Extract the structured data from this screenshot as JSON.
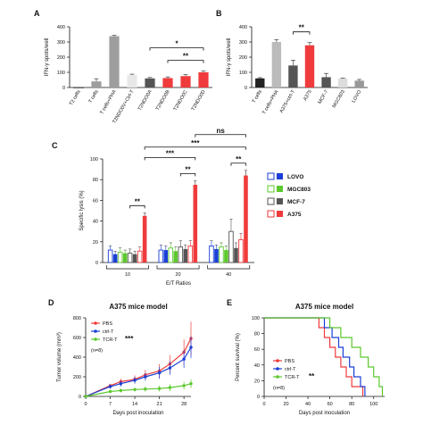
{
  "chart_data": [
    {
      "id": "A",
      "type": "bar",
      "panel_label": "A",
      "ylabel": "IFN-γ spots/well",
      "ylim": [
        0,
        400
      ],
      "yticks": [
        0,
        100,
        200,
        300,
        400
      ],
      "categories": [
        "T2 cells",
        "T cells",
        "T cells+PHA",
        "T2NDO0V+Ctrl-T",
        "T2NDO0A",
        "T2NDO0B",
        "T2NDO0C",
        "T2NDO0D"
      ],
      "values": [
        0,
        40,
        338,
        82,
        60,
        62,
        75,
        100
      ],
      "errors": [
        0,
        18,
        5,
        6,
        6,
        8,
        10,
        8
      ],
      "colors": [
        "#ffffff",
        "#9e9e9e",
        "#9e9e9e",
        "#e8e8e8",
        "#555555",
        "#ef3b3b",
        "#ef3b3b",
        "#ef3b3b"
      ],
      "significance": [
        {
          "from": 4,
          "to": 7,
          "label": "*"
        },
        {
          "from": 5,
          "to": 7,
          "label": "**"
        }
      ]
    },
    {
      "id": "B",
      "type": "bar",
      "panel_label": "B",
      "ylabel": "IFN-γ spots/well",
      "ylim": [
        0,
        400
      ],
      "yticks": [
        0,
        100,
        200,
        300,
        400
      ],
      "categories": [
        "T cells",
        "T cells+PHA",
        "A375+ctrl-T",
        "A375",
        "MCF-7",
        "MGC803",
        "LOVO"
      ],
      "values": [
        60,
        300,
        145,
        278,
        68,
        60,
        45
      ],
      "errors": [
        5,
        15,
        35,
        18,
        25,
        3,
        8
      ],
      "colors": [
        "#222222",
        "#bbbbbb",
        "#555555",
        "#ef3b3b",
        "#555555",
        "#dddddd",
        "#999999"
      ],
      "significance": [
        {
          "from": 2,
          "to": 3,
          "label": "**"
        }
      ]
    },
    {
      "id": "C",
      "type": "bar",
      "panel_label": "C",
      "ylabel": "Specific lysis (%)",
      "xlabel": "E/T Ratios",
      "ylim": [
        0,
        100
      ],
      "yticks": [
        0,
        20,
        40,
        60,
        80,
        100
      ],
      "categories": [
        "10",
        "20",
        "40"
      ],
      "series": [
        {
          "name": "LOVO",
          "values": [
            12,
            12,
            16
          ],
          "errors": [
            4,
            5,
            5
          ],
          "color": "#1a3fd6",
          "hollow": true
        },
        {
          "name": "",
          "values": [
            8,
            12,
            13
          ],
          "errors": [
            3,
            4,
            4
          ],
          "color": "#1a3fd6",
          "hollow": false
        },
        {
          "name": "MGC803",
          "values": [
            10,
            14,
            15
          ],
          "errors": [
            4,
            5,
            4
          ],
          "color": "#5cc82d",
          "hollow": true
        },
        {
          "name": "",
          "values": [
            9,
            11,
            12
          ],
          "errors": [
            3,
            4,
            4
          ],
          "color": "#5cc82d",
          "hollow": false
        },
        {
          "name": "MCF-7",
          "values": [
            9,
            15,
            30
          ],
          "errors": [
            4,
            6,
            12
          ],
          "color": "#555555",
          "hollow": true
        },
        {
          "name": "",
          "values": [
            8,
            13,
            14
          ],
          "errors": [
            3,
            4,
            5
          ],
          "color": "#555555",
          "hollow": false
        },
        {
          "name": "A375",
          "values": [
            11,
            16,
            22
          ],
          "errors": [
            4,
            5,
            6
          ],
          "color": "#ef3b3b",
          "hollow": true
        },
        {
          "name": "",
          "values": [
            45,
            75,
            84
          ],
          "errors": [
            3,
            4,
            5
          ],
          "color": "#ef3b3b",
          "hollow": false
        }
      ],
      "significance": [
        {
          "label": "**"
        },
        {
          "label": "**"
        },
        {
          "label": "**"
        },
        {
          "label": "***"
        },
        {
          "label": "***"
        },
        {
          "label": "ns"
        }
      ]
    },
    {
      "id": "D",
      "type": "line",
      "panel_label": "D",
      "title": "A375 mice model",
      "xlabel": "Days post inoculation",
      "ylabel": "Tumor volume (mm³)",
      "xlim": [
        0,
        30
      ],
      "xticks": [
        0,
        7,
        14,
        21,
        28
      ],
      "ylim": [
        0,
        800
      ],
      "yticks": [
        0,
        200,
        400,
        600,
        800
      ],
      "series": [
        {
          "name": "PBS",
          "color": "#ef3b3b",
          "x": [
            0,
            7,
            10,
            14,
            17,
            21,
            24,
            28,
            30
          ],
          "y": [
            0,
            110,
            150,
            175,
            220,
            260,
            330,
            450,
            590
          ],
          "err": [
            0,
            20,
            30,
            40,
            50,
            70,
            90,
            130,
            170
          ]
        },
        {
          "name": "ctrl-T",
          "color": "#1a3fd6",
          "x": [
            0,
            7,
            10,
            14,
            17,
            21,
            24,
            28,
            30
          ],
          "y": [
            0,
            100,
            130,
            165,
            200,
            240,
            290,
            380,
            500
          ],
          "err": [
            0,
            20,
            30,
            35,
            40,
            60,
            70,
            90,
            110
          ]
        },
        {
          "name": "TCR-T",
          "color": "#5cc82d",
          "x": [
            0,
            7,
            10,
            14,
            17,
            21,
            24,
            28,
            30
          ],
          "y": [
            0,
            50,
            60,
            70,
            75,
            80,
            90,
            110,
            130
          ],
          "err": [
            0,
            15,
            20,
            20,
            25,
            30,
            35,
            40,
            45
          ]
        }
      ],
      "annotation": "(n=8)",
      "significance": "***"
    },
    {
      "id": "E",
      "type": "line",
      "panel_label": "E",
      "title": "A375 mice model",
      "xlabel": "Days post inoculation",
      "ylabel": "Percent survival (%)",
      "xlim": [
        0,
        110
      ],
      "xticks": [
        0,
        20,
        40,
        60,
        80,
        100
      ],
      "ylim": [
        0,
        100
      ],
      "yticks": [
        0,
        20,
        40,
        60,
        80,
        100
      ],
      "series": [
        {
          "name": "PBS",
          "color": "#ef3b3b",
          "x": [
            0,
            50,
            50,
            55,
            55,
            60,
            60,
            65,
            65,
            70,
            70,
            75,
            75,
            80,
            80,
            85,
            85,
            90,
            90
          ],
          "y": [
            100,
            100,
            87.5,
            87.5,
            75,
            75,
            62.5,
            62.5,
            50,
            50,
            37.5,
            37.5,
            25,
            25,
            12.5,
            12.5,
            12.5,
            12.5,
            0
          ]
        },
        {
          "name": "ctrl-T",
          "color": "#1a3fd6",
          "x": [
            0,
            55,
            55,
            62,
            62,
            68,
            68,
            72,
            72,
            78,
            78,
            82,
            82,
            88,
            88,
            92,
            92
          ],
          "y": [
            100,
            100,
            87.5,
            87.5,
            75,
            75,
            62.5,
            62.5,
            50,
            50,
            37.5,
            37.5,
            25,
            25,
            12.5,
            12.5,
            0
          ]
        },
        {
          "name": "TCR-T",
          "color": "#5cc82d",
          "x": [
            0,
            60,
            60,
            70,
            70,
            80,
            80,
            88,
            88,
            95,
            95,
            100,
            100,
            105,
            105,
            108,
            108
          ],
          "y": [
            100,
            100,
            87.5,
            87.5,
            75,
            75,
            62.5,
            62.5,
            50,
            50,
            37.5,
            37.5,
            25,
            25,
            12.5,
            12.5,
            0
          ]
        }
      ],
      "annotation": "(n=8)",
      "significance": "**"
    }
  ]
}
